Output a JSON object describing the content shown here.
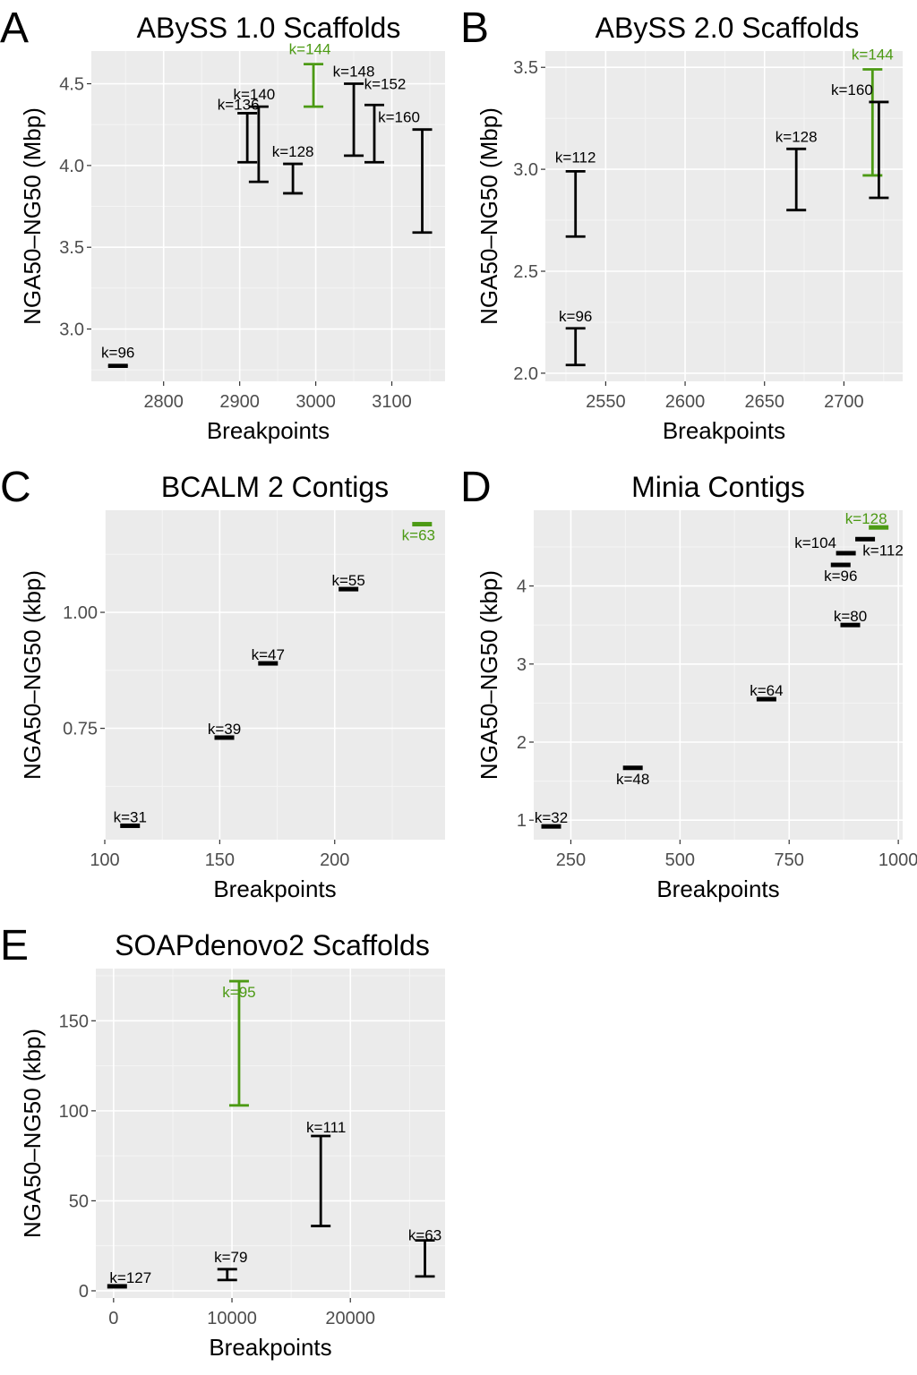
{
  "chart_data": [
    {
      "panel": "A",
      "type": "errorbar",
      "title": "ABySS 1.0 Scaffolds",
      "xlabel": "Breakpoints",
      "ylabel": "NGA50–NG50 (Mbp)",
      "xlim": [
        2705,
        3170
      ],
      "ylim": [
        2.68,
        4.7
      ],
      "xticks": [
        2800,
        2900,
        3000,
        3100
      ],
      "xtick_labels": [
        "2800",
        "2900",
        "3000",
        "3100"
      ],
      "yticks": [
        3.0,
        3.5,
        4.0,
        4.5
      ],
      "ytick_labels": [
        "3.0",
        "3.5",
        "4.0",
        "4.5"
      ],
      "grid": true,
      "points": [
        {
          "label": "k=96",
          "x": 2740,
          "ymin": 2.77,
          "ymax": 2.78,
          "highlight": false
        },
        {
          "label": "k=128",
          "x": 2970,
          "ymin": 3.83,
          "ymax": 4.01,
          "highlight": false
        },
        {
          "label": "k=136",
          "x": 2910,
          "ymin": 4.02,
          "ymax": 4.32,
          "highlight": false
        },
        {
          "label": "k=140",
          "x": 2925,
          "ymin": 3.9,
          "ymax": 4.36,
          "highlight": false
        },
        {
          "label": "k=144",
          "x": 2997,
          "ymin": 4.36,
          "ymax": 4.62,
          "highlight": true
        },
        {
          "label": "k=148",
          "x": 3050,
          "ymin": 4.06,
          "ymax": 4.5,
          "highlight": false
        },
        {
          "label": "k=152",
          "x": 3077,
          "ymin": 4.02,
          "ymax": 4.37,
          "highlight": false
        },
        {
          "label": "k=160",
          "x": 3140,
          "ymin": 3.59,
          "ymax": 4.22,
          "highlight": false
        }
      ]
    },
    {
      "panel": "B",
      "type": "errorbar",
      "title": "ABySS 2.0 Scaffolds",
      "xlabel": "Breakpoints",
      "ylabel": "NGA50–NG50 (Mbp)",
      "xlim": [
        2512,
        2737
      ],
      "ylim": [
        1.96,
        3.58
      ],
      "xticks": [
        2550,
        2600,
        2650,
        2700
      ],
      "xtick_labels": [
        "2550",
        "2600",
        "2650",
        "2700"
      ],
      "yticks": [
        2.0,
        2.5,
        3.0,
        3.5
      ],
      "ytick_labels": [
        "2.0",
        "2.5",
        "3.0",
        "3.5"
      ],
      "grid": true,
      "points": [
        {
          "label": "k=96",
          "x": 2531,
          "ymin": 2.04,
          "ymax": 2.22,
          "highlight": false
        },
        {
          "label": "k=112",
          "x": 2531,
          "ymin": 2.67,
          "ymax": 2.99,
          "highlight": false
        },
        {
          "label": "k=128",
          "x": 2670,
          "ymin": 2.8,
          "ymax": 3.1,
          "highlight": false
        },
        {
          "label": "k=144",
          "x": 2718,
          "ymin": 2.97,
          "ymax": 3.49,
          "highlight": true
        },
        {
          "label": "k=160",
          "x": 2722,
          "ymin": 2.86,
          "ymax": 3.33,
          "highlight": false
        }
      ]
    },
    {
      "panel": "C",
      "type": "errorbar",
      "title": "BCALM 2 Contigs",
      "xlabel": "Breakpoints",
      "ylabel": "NGA50–NG50 (kbp)",
      "xlim": [
        100,
        248
      ],
      "ylim": [
        0.51,
        1.22
      ],
      "xticks": [
        100,
        150,
        200
      ],
      "xtick_labels": [
        "100",
        "150",
        "200"
      ],
      "yticks": [
        0.75,
        1.0
      ],
      "ytick_labels": [
        "0.75",
        "1.00"
      ],
      "grid": true,
      "points": [
        {
          "label": "k=31",
          "x": 111,
          "ymin": 0.54,
          "ymax": 0.54,
          "highlight": false
        },
        {
          "label": "k=39",
          "x": 152,
          "ymin": 0.73,
          "ymax": 0.73,
          "highlight": false
        },
        {
          "label": "k=47",
          "x": 171,
          "ymin": 0.89,
          "ymax": 0.89,
          "highlight": false
        },
        {
          "label": "k=55",
          "x": 206,
          "ymin": 1.05,
          "ymax": 1.05,
          "highlight": false
        },
        {
          "label": "k=63",
          "x": 238,
          "ymin": 1.19,
          "ymax": 1.19,
          "highlight": true
        }
      ]
    },
    {
      "panel": "D",
      "type": "errorbar",
      "title": "Minia Contigs",
      "xlabel": "Breakpoints",
      "ylabel": "NGA50–NG50 (kbp)",
      "xlim": [
        165,
        1010
      ],
      "ylim": [
        0.75,
        4.97
      ],
      "xticks": [
        250,
        500,
        750,
        1000
      ],
      "xtick_labels": [
        "250",
        "500",
        "750",
        "1000"
      ],
      "yticks": [
        1,
        2,
        3,
        4
      ],
      "ytick_labels": [
        "1",
        "2",
        "3",
        "4"
      ],
      "grid": true,
      "points": [
        {
          "label": "k=32",
          "x": 205,
          "ymin": 0.92,
          "ymax": 0.92,
          "highlight": false
        },
        {
          "label": "k=48",
          "x": 392,
          "ymin": 1.67,
          "ymax": 1.67,
          "highlight": false
        },
        {
          "label": "k=64",
          "x": 698,
          "ymin": 2.55,
          "ymax": 2.55,
          "highlight": false
        },
        {
          "label": "k=80",
          "x": 890,
          "ymin": 3.5,
          "ymax": 3.5,
          "highlight": false
        },
        {
          "label": "k=96",
          "x": 868,
          "ymin": 4.27,
          "ymax": 4.27,
          "highlight": false
        },
        {
          "label": "k=104",
          "x": 880,
          "ymin": 4.42,
          "ymax": 4.42,
          "highlight": false
        },
        {
          "label": "k=112",
          "x": 924,
          "ymin": 4.6,
          "ymax": 4.6,
          "highlight": false
        },
        {
          "label": "k=128",
          "x": 955,
          "ymin": 4.75,
          "ymax": 4.75,
          "highlight": true
        }
      ]
    },
    {
      "panel": "E",
      "type": "errorbar",
      "title": "SOAPdenovo2 Scaffolds",
      "xlabel": "Breakpoints",
      "ylabel": "NGA50–NG50 (kbp)",
      "xlim": [
        -1500,
        28000
      ],
      "ylim": [
        -4,
        179
      ],
      "xticks": [
        0,
        10000,
        20000
      ],
      "xtick_labels": [
        "0",
        "10000",
        "20000"
      ],
      "yticks": [
        0,
        50,
        100,
        150
      ],
      "ytick_labels": [
        "0",
        "50",
        "100",
        "150"
      ],
      "grid": true,
      "points": [
        {
          "label": "k=127",
          "x": 300,
          "ymin": 2.5,
          "ymax": 2.5,
          "highlight": false
        },
        {
          "label": "k=79",
          "x": 9600,
          "ymin": 6,
          "ymax": 12,
          "highlight": false
        },
        {
          "label": "k=95",
          "x": 10600,
          "ymin": 103,
          "ymax": 172,
          "highlight": true
        },
        {
          "label": "k=111",
          "x": 17500,
          "ymin": 36,
          "ymax": 86,
          "highlight": false
        },
        {
          "label": "k=63",
          "x": 26300,
          "ymin": 8,
          "ymax": 28,
          "highlight": false
        }
      ]
    }
  ],
  "colors": {
    "normal": "#000000",
    "highlight": "#4c9a14",
    "panel_bg": "#ebebeb",
    "grid_major": "#ffffff",
    "grid_minor": "#f5f5f5",
    "tick_text": "#4d4d4d"
  }
}
